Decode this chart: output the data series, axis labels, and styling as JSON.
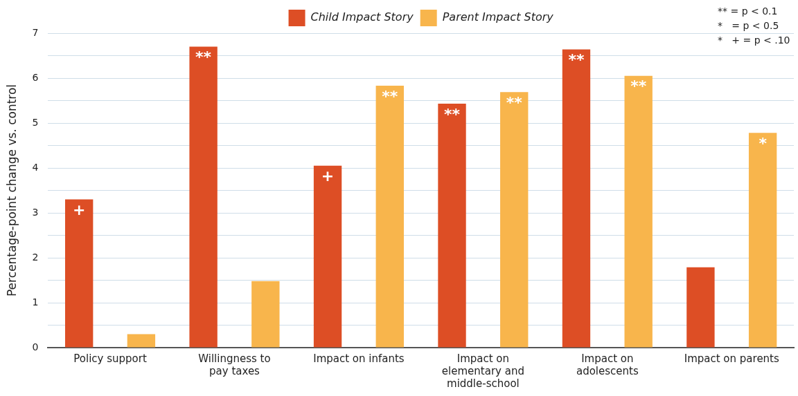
{
  "chart_data": {
    "type": "bar",
    "ylabel": "Percentage-point change vs. control",
    "categories": [
      "Policy support",
      "Willingness to pay taxes",
      "Impact on infants",
      "Impact on elementary and middle-school",
      "Impact on adolescents",
      "Impact on parents"
    ],
    "series": [
      {
        "name": "Child Impact Story",
        "color": "#dd4e25",
        "values": [
          3.3,
          6.7,
          4.05,
          5.43,
          6.64,
          1.79
        ],
        "value_labels": [
          "+",
          "**",
          "+",
          "**",
          "**",
          null
        ]
      },
      {
        "name": "Parent Impact Story",
        "color": "#f8b54c",
        "values": [
          0.3,
          1.48,
          5.83,
          5.69,
          6.05,
          4.78
        ],
        "value_labels": [
          null,
          null,
          "**",
          "**",
          "**",
          "*"
        ]
      }
    ],
    "ylim": [
      0,
      7
    ],
    "yticks": [
      0,
      {
        "value": 0.5,
        "label": null
      },
      1,
      {
        "value": 1.5,
        "label": null
      },
      2,
      {
        "value": 2.5,
        "label": null
      },
      3,
      {
        "value": 3.5,
        "label": null
      },
      4,
      {
        "value": 4.5,
        "label": null
      },
      5,
      {
        "value": 5.5,
        "label": null
      },
      6,
      {
        "value": 6.5,
        "label": null
      },
      7
    ],
    "grid": "y",
    "legend": "top right",
    "annotations": [
      "** = p < 0.1",
      "*   = p < 0.5",
      "*   + = p < .10"
    ]
  }
}
